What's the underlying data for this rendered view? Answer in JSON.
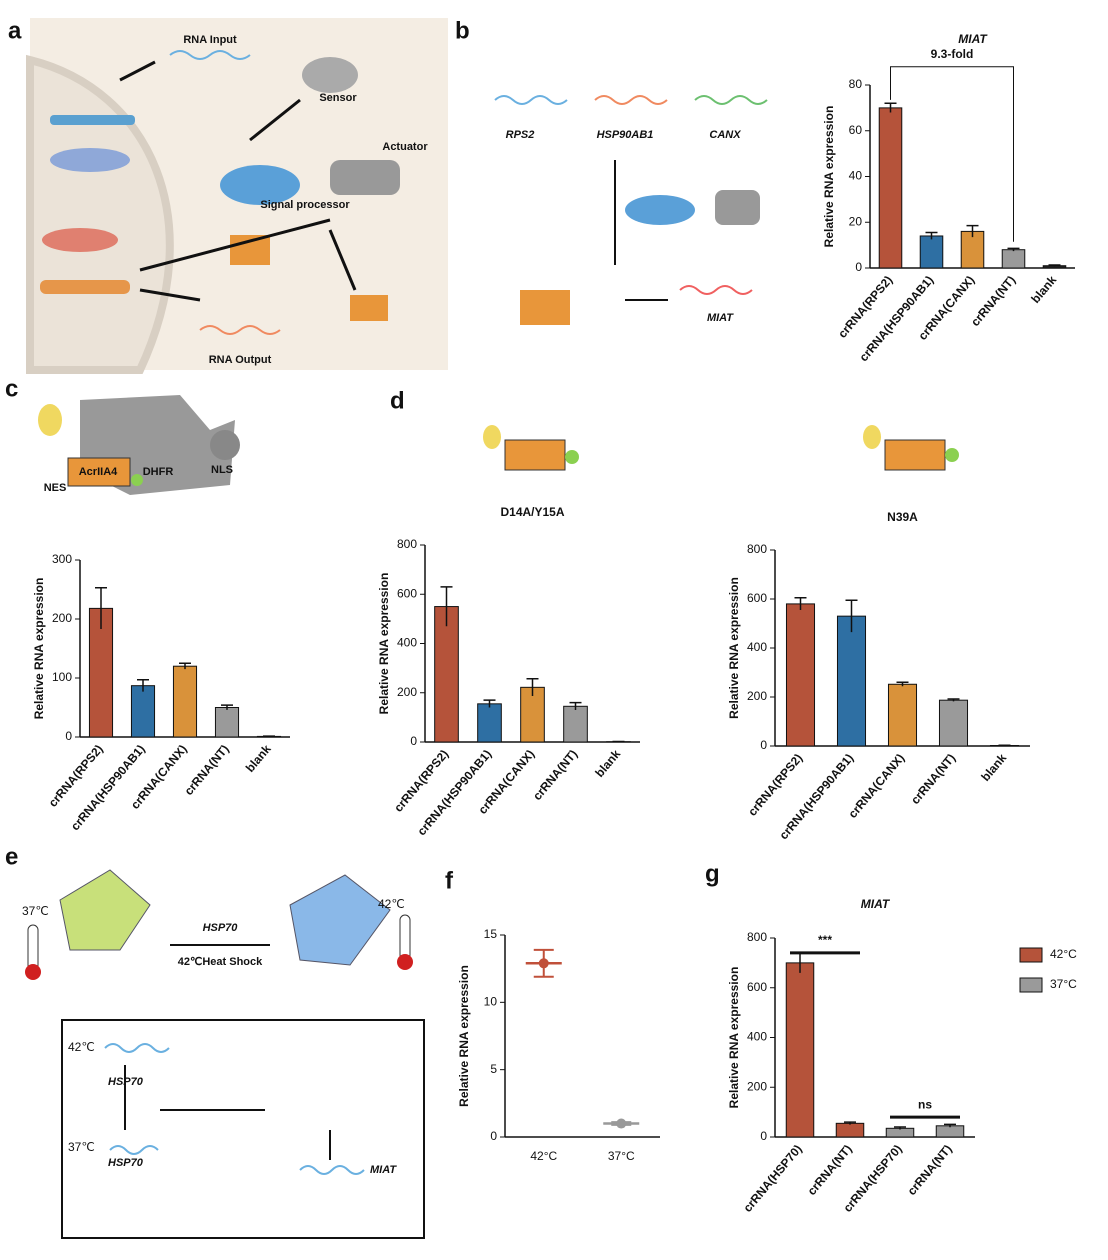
{
  "panels": [
    "a",
    "b",
    "c",
    "d",
    "e",
    "f",
    "g"
  ],
  "diagrams": {
    "a": [
      "RNA Input",
      "Sensor",
      "Actuator",
      "Signal processor",
      "RNA Output"
    ],
    "b": [
      "RPS2",
      "HSP90AB1",
      "CANX",
      "MIAT"
    ],
    "c": [
      "NES",
      "AcrIIA4",
      "DHFR",
      "NLS"
    ],
    "e": [
      "37℃",
      "HSP70",
      "42℃Heat Shock",
      "42℃",
      "42℃",
      "HSP70",
      "37℃",
      "HSP70",
      "MIAT"
    ]
  },
  "chart_data": [
    {
      "type": "bar",
      "title": "MIAT",
      "ylabel": "Relative RNA expression",
      "categories": [
        "crRNA(RPS2)",
        "crRNA(HSP90AB1)",
        "crRNA(CANX)",
        "crRNA(NT)",
        "blank"
      ],
      "values": [
        70,
        14,
        16,
        8,
        1
      ],
      "errors": [
        2,
        1.5,
        2.5,
        0.6,
        0.3
      ],
      "colors": [
        "#b5533a",
        "#2e6fa3",
        "#d9923a",
        "#9a9a9a",
        "#222222"
      ],
      "ylim": [
        0,
        80
      ],
      "yticks": [
        0,
        20,
        40,
        60,
        80
      ],
      "annotations": [
        "9.3-fold"
      ]
    },
    {
      "type": "bar",
      "ylabel": "Relative RNA expression",
      "categories": [
        "crRNA(RPS2)",
        "crRNA(HSP90AB1)",
        "crRNA(CANX)",
        "crRNA(NT)",
        "blank"
      ],
      "values": [
        218,
        87,
        120,
        50,
        1
      ],
      "errors": [
        35,
        10,
        5,
        4,
        0.5
      ],
      "colors": [
        "#b5533a",
        "#2e6fa3",
        "#d9923a",
        "#9a9a9a",
        "#222222"
      ],
      "ylim": [
        0,
        300
      ],
      "yticks": [
        0,
        100,
        200,
        300
      ]
    },
    {
      "type": "bar",
      "title": "D14A/Y15A",
      "ylabel": "Relative RNA expression",
      "categories": [
        "crRNA(RPS2)",
        "crRNA(HSP90AB1)",
        "crRNA(CANX)",
        "crRNA(NT)",
        "blank"
      ],
      "values": [
        550,
        155,
        222,
        145,
        1
      ],
      "errors": [
        80,
        15,
        35,
        15,
        1
      ],
      "colors": [
        "#b5533a",
        "#2e6fa3",
        "#d9923a",
        "#9a9a9a",
        "#222222"
      ],
      "ylim": [
        0,
        800
      ],
      "yticks": [
        0,
        200,
        400,
        600,
        800
      ]
    },
    {
      "type": "bar",
      "title": "N39A",
      "ylabel": "Relative RNA expression",
      "categories": [
        "crRNA(RPS2)",
        "crRNA(HSP90AB1)",
        "crRNA(CANX)",
        "crRNA(NT)",
        "blank"
      ],
      "values": [
        580,
        530,
        252,
        187,
        2
      ],
      "errors": [
        25,
        65,
        8,
        5,
        1
      ],
      "colors": [
        "#b5533a",
        "#2e6fa3",
        "#d9923a",
        "#9a9a9a",
        "#222222"
      ],
      "ylim": [
        0,
        800
      ],
      "yticks": [
        0,
        200,
        400,
        600,
        800
      ]
    },
    {
      "type": "dot",
      "ylabel": "Relative RNA expression",
      "categories": [
        "42°C",
        "37°C"
      ],
      "values": [
        12.9,
        1.0
      ],
      "errors": [
        1.0,
        0.1
      ],
      "colors": [
        "#c0503a",
        "#999999"
      ],
      "ylim": [
        0,
        15
      ],
      "yticks": [
        0,
        5,
        10,
        15
      ]
    },
    {
      "type": "grouped_bar",
      "title": "MIAT",
      "ylabel": "Relative RNA expression",
      "categories": [
        "crRNA(HSP70)",
        "crRNA(NT)",
        "crRNA(HSP70)",
        "crRNA(NT)"
      ],
      "series": [
        {
          "name": "42°C",
          "color": "#b5533a",
          "values": [
            700,
            55,
            null,
            null
          ],
          "errors": [
            40,
            5,
            null,
            null
          ]
        },
        {
          "name": "37°C",
          "color": "#9a9a9a",
          "values": [
            null,
            null,
            35,
            45
          ],
          "errors": [
            null,
            null,
            5,
            6
          ]
        }
      ],
      "ylim": [
        0,
        800
      ],
      "yticks": [
        0,
        200,
        400,
        600,
        800
      ],
      "annotations": [
        "***",
        "ns"
      ],
      "legend": "right"
    }
  ]
}
